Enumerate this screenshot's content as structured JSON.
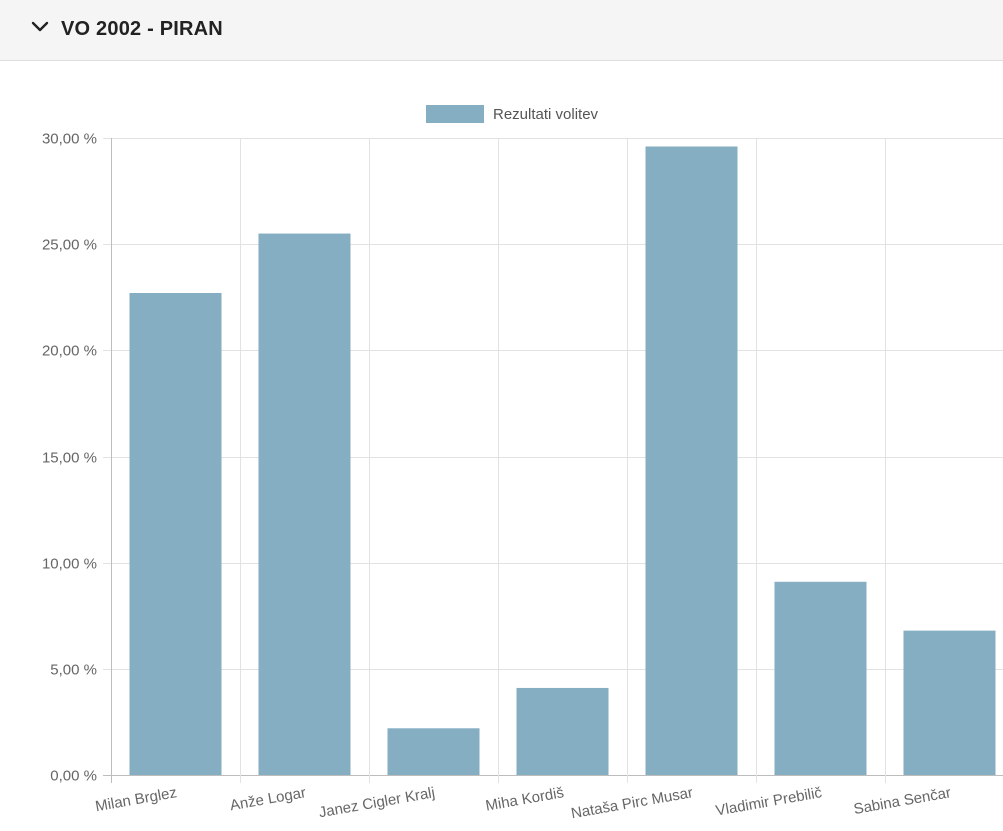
{
  "header": {
    "title": "VO 2002 - PIRAN",
    "toggle_icon": "chevron-down-icon"
  },
  "colors": {
    "bar": "#85aec2",
    "grid": "#e2e2e2",
    "axis_text": "#666666"
  },
  "chart_data": {
    "type": "bar",
    "categories": [
      "Milan Brglez",
      "Anže Logar",
      "Janez Cigler Kralj",
      "Miha Kordiš",
      "Nataša Pirc Musar",
      "Vladimir Prebilič",
      "Sabina Senčar"
    ],
    "series": [
      {
        "name": "Rezultati volitev",
        "values": [
          22.7,
          25.5,
          2.2,
          4.1,
          29.6,
          9.1,
          6.8
        ]
      }
    ],
    "ylim": [
      0,
      30
    ],
    "yticks": [
      "0,00 %",
      "5,00 %",
      "10,00 %",
      "15,00 %",
      "20,00 %",
      "25,00 %",
      "30,00 %"
    ],
    "grid": true,
    "legend_position": "top-center"
  }
}
